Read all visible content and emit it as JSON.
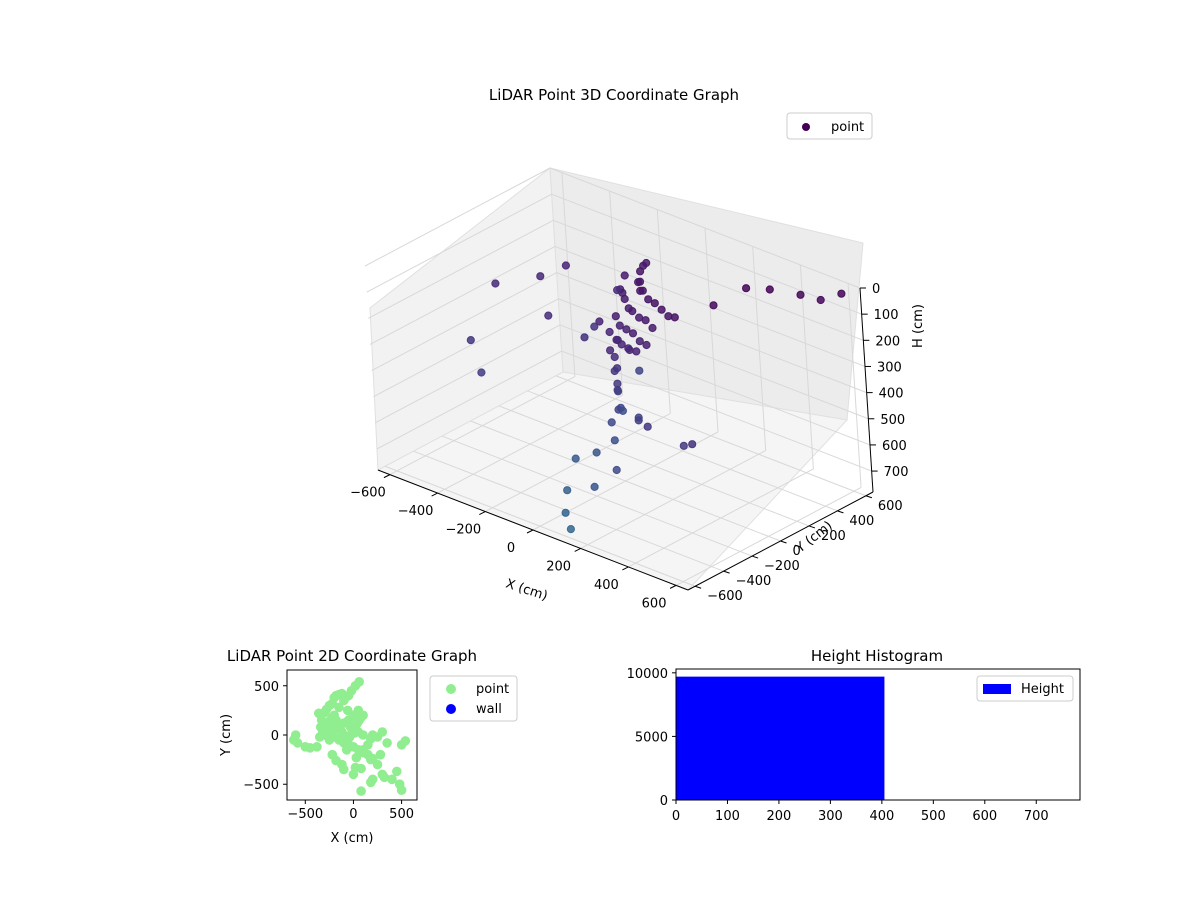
{
  "chart_data": [
    {
      "type": "scatter",
      "title": "LiDAR Point 3D Coordinate Graph",
      "xlabel": "X (cm)",
      "ylabel": "Y (cm)",
      "zlabel": "H (cm)",
      "xlim": [
        -650,
        650
      ],
      "ylim": [
        -650,
        650
      ],
      "zlim": [
        780,
        0
      ],
      "x_ticks": [
        -600,
        -400,
        -200,
        0,
        200,
        400,
        600
      ],
      "y_ticks": [
        -600,
        -400,
        -200,
        0,
        200,
        400,
        600
      ],
      "z_ticks": [
        0,
        100,
        200,
        300,
        400,
        500,
        600,
        700
      ],
      "colormap": "viridis",
      "legend": {
        "position": "top-right",
        "entries": [
          {
            "label": "point",
            "color": "#440154"
          }
        ]
      },
      "grid": true,
      "series": [
        {
          "name": "point",
          "points": [
            [
              -180,
              520,
              160
            ],
            [
              -150,
              450,
              140
            ],
            [
              -120,
              380,
              130
            ],
            [
              -100,
              330,
              150
            ],
            [
              -60,
              280,
              120
            ],
            [
              -30,
              230,
              130
            ],
            [
              0,
              200,
              110
            ],
            [
              40,
              170,
              120
            ],
            [
              80,
              150,
              115
            ],
            [
              120,
              130,
              120
            ],
            [
              160,
              110,
              125
            ],
            [
              200,
              90,
              110
            ],
            [
              -200,
              400,
              180
            ],
            [
              -160,
              300,
              190
            ],
            [
              -120,
              250,
              175
            ],
            [
              -80,
              200,
              170
            ],
            [
              -40,
              160,
              180
            ],
            [
              0,
              120,
              165
            ],
            [
              40,
              100,
              170
            ],
            [
              80,
              80,
              160
            ],
            [
              120,
              60,
              170
            ],
            [
              -60,
              100,
              200
            ],
            [
              -20,
              60,
              210
            ],
            [
              20,
              40,
              205
            ],
            [
              60,
              20,
              200
            ],
            [
              100,
              0,
              210
            ],
            [
              140,
              -20,
              205
            ],
            [
              -40,
              20,
              230
            ],
            [
              0,
              0,
              240
            ],
            [
              40,
              -30,
              235
            ],
            [
              80,
              -50,
              230
            ],
            [
              -100,
              50,
              220
            ],
            [
              120,
              -60,
              225
            ],
            [
              20,
              -80,
              250
            ],
            [
              -20,
              40,
              260
            ],
            [
              60,
              -10,
              255
            ],
            [
              0,
              -20,
              300
            ],
            [
              20,
              -40,
              330
            ],
            [
              -10,
              -10,
              360
            ],
            [
              30,
              -60,
              380
            ],
            [
              10,
              -30,
              420
            ],
            [
              -20,
              20,
              450
            ],
            [
              40,
              -80,
              470
            ],
            [
              0,
              0,
              500
            ],
            [
              20,
              -100,
              520
            ],
            [
              60,
              -150,
              560
            ],
            [
              -30,
              60,
              540
            ],
            [
              10,
              -200,
              610
            ],
            [
              -100,
              300,
              480
            ],
            [
              150,
              -120,
              450
            ],
            [
              200,
              -200,
              420
            ],
            [
              -250,
              250,
              350
            ],
            [
              -350,
              100,
              300
            ],
            [
              -500,
              300,
              260
            ],
            [
              -600,
              150,
              280
            ],
            [
              -450,
              400,
              230
            ],
            [
              300,
              -300,
              380
            ],
            [
              450,
              -300,
              400
            ],
            [
              550,
              -400,
              330
            ],
            [
              -300,
              500,
              300
            ],
            [
              350,
              350,
              20
            ],
            [
              420,
              400,
              15
            ],
            [
              500,
              480,
              30
            ],
            [
              560,
              520,
              40
            ],
            [
              600,
              600,
              25
            ],
            [
              300,
              200,
              60
            ],
            [
              -500,
              -200,
              360
            ],
            [
              -400,
              -300,
              420
            ],
            [
              250,
              -450,
              520
            ],
            [
              -50,
              -250,
              640
            ],
            [
              0,
              -400,
              700
            ],
            [
              50,
              -500,
              740
            ],
            [
              100,
              -550,
              770
            ],
            [
              150,
              -450,
              620
            ],
            [
              -200,
              100,
              330
            ]
          ]
        }
      ]
    },
    {
      "type": "scatter",
      "title": "LiDAR Point 2D Coordinate Graph",
      "xlabel": "X (cm)",
      "ylabel": "Y (cm)",
      "xlim": [
        -690,
        660
      ],
      "ylim": [
        -660,
        660
      ],
      "x_ticks": [
        -500,
        0,
        500
      ],
      "y_ticks": [
        -500,
        0,
        500
      ],
      "legend": {
        "position": "outside-right",
        "entries": [
          {
            "label": "point",
            "color": "#90ee90"
          },
          {
            "label": "wall",
            "color": "#0000ff"
          }
        ]
      },
      "grid": false,
      "series": [
        {
          "name": "point",
          "color": "#90ee90",
          "points": [
            [
              -620,
              -50
            ],
            [
              -600,
              0
            ],
            [
              -580,
              -80
            ],
            [
              -500,
              -120
            ],
            [
              -450,
              -130
            ],
            [
              -380,
              -120
            ],
            [
              -360,
              220
            ],
            [
              -330,
              150
            ],
            [
              -300,
              230
            ],
            [
              -280,
              260
            ],
            [
              -250,
              300
            ],
            [
              -220,
              320
            ],
            [
              -200,
              380
            ],
            [
              -180,
              400
            ],
            [
              -150,
              410
            ],
            [
              -120,
              420
            ],
            [
              -100,
              350
            ],
            [
              -80,
              380
            ],
            [
              -50,
              400
            ],
            [
              -20,
              450
            ],
            [
              20,
              500
            ],
            [
              60,
              540
            ],
            [
              -340,
              80
            ],
            [
              -320,
              30
            ],
            [
              -300,
              0
            ],
            [
              -280,
              50
            ],
            [
              -260,
              100
            ],
            [
              -240,
              150
            ],
            [
              -220,
              180
            ],
            [
              -200,
              200
            ],
            [
              -180,
              150
            ],
            [
              -160,
              100
            ],
            [
              -140,
              60
            ],
            [
              -120,
              30
            ],
            [
              -100,
              0
            ],
            [
              -80,
              -30
            ],
            [
              -60,
              -60
            ],
            [
              -40,
              -20
            ],
            [
              -20,
              10
            ],
            [
              0,
              40
            ],
            [
              20,
              80
            ],
            [
              40,
              120
            ],
            [
              60,
              150
            ],
            [
              80,
              180
            ],
            [
              100,
              200
            ],
            [
              50,
              250
            ],
            [
              0,
              200
            ],
            [
              -50,
              150
            ],
            [
              -100,
              120
            ],
            [
              -150,
              80
            ],
            [
              -200,
              60
            ],
            [
              -250,
              20
            ],
            [
              -200,
              -20
            ],
            [
              -150,
              -50
            ],
            [
              -100,
              -80
            ],
            [
              -50,
              -100
            ],
            [
              0,
              -120
            ],
            [
              50,
              -150
            ],
            [
              100,
              -180
            ],
            [
              150,
              -200
            ],
            [
              -220,
              -200
            ],
            [
              -180,
              -260
            ],
            [
              -120,
              -300
            ],
            [
              -100,
              -350
            ],
            [
              0,
              -400
            ],
            [
              20,
              -330
            ],
            [
              80,
              -340
            ],
            [
              100,
              -150
            ],
            [
              150,
              -100
            ],
            [
              180,
              -40
            ],
            [
              200,
              0
            ],
            [
              250,
              -20
            ],
            [
              300,
              30
            ],
            [
              350,
              -80
            ],
            [
              280,
              -200
            ],
            [
              200,
              -240
            ],
            [
              180,
              -250
            ],
            [
              250,
              -300
            ],
            [
              300,
              -400
            ],
            [
              200,
              -450
            ],
            [
              180,
              -480
            ],
            [
              320,
              -430
            ],
            [
              400,
              -450
            ],
            [
              450,
              -370
            ],
            [
              480,
              -500
            ],
            [
              500,
              -560
            ],
            [
              500,
              -100
            ],
            [
              540,
              -60
            ],
            [
              80,
              -570
            ],
            [
              100,
              0
            ],
            [
              50,
              30
            ],
            [
              -30,
              80
            ],
            [
              10,
              20
            ],
            [
              -60,
              250
            ],
            [
              -150,
              280
            ],
            [
              -250,
              -50
            ],
            [
              -350,
              -20
            ],
            [
              -70,
              -150
            ],
            [
              30,
              -230
            ]
          ]
        },
        {
          "name": "wall",
          "color": "#0000ff",
          "points": []
        }
      ]
    },
    {
      "type": "bar",
      "title": "Height Histogram",
      "xlim": [
        0,
        785
      ],
      "ylim": [
        0,
        10300
      ],
      "x_ticks": [
        0,
        100,
        200,
        300,
        400,
        500,
        600,
        700
      ],
      "y_ticks": [
        0,
        5000,
        10000
      ],
      "legend": {
        "position": "top-right",
        "entries": [
          {
            "label": "Height",
            "color": "#0000ff"
          }
        ]
      },
      "grid": false,
      "series": [
        {
          "name": "Height",
          "color": "#0000ff",
          "bins": [
            {
              "x0": 0,
              "x1": 405,
              "count": 9700
            },
            {
              "x0": 405,
              "x1": 785,
              "count": 8
            }
          ]
        }
      ]
    }
  ]
}
